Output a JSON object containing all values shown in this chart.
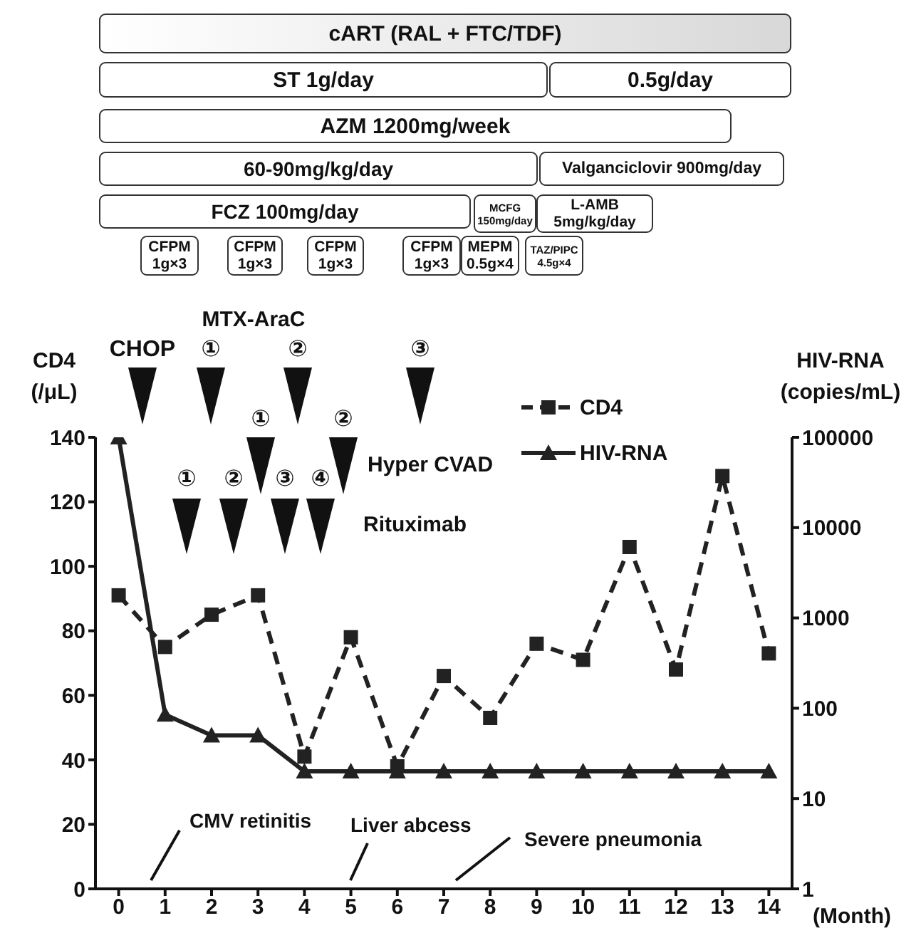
{
  "chart_data": {
    "type": "line",
    "xlabel": "(Month)",
    "ylabel": "CD4\n(/μL)",
    "y2label": "HIV-RNA\n(copies/mL)",
    "x": [
      0,
      1,
      2,
      3,
      4,
      5,
      6,
      7,
      8,
      9,
      10,
      11,
      12,
      13,
      14
    ],
    "xlim": [
      -0.5,
      14.5
    ],
    "xticks": [
      0,
      1,
      2,
      3,
      4,
      5,
      6,
      7,
      8,
      9,
      10,
      11,
      12,
      13,
      14
    ],
    "ylim": [
      0,
      140
    ],
    "yticks": [
      0,
      20,
      40,
      60,
      80,
      100,
      120,
      140
    ],
    "y2lim": [
      1,
      100000
    ],
    "y2ticks": [
      1,
      10,
      100,
      1000,
      10000,
      100000
    ],
    "log": "y2",
    "grid": false,
    "legend": "top right",
    "series": [
      {
        "name": "CD4",
        "color": "#222222",
        "marker": "square",
        "line_style": "dashed",
        "values": [
          91,
          75,
          85,
          91,
          41,
          78,
          38,
          66,
          53,
          76,
          71,
          106,
          68,
          128,
          73
        ]
      },
      {
        "name": "HIV-RNA",
        "color": "#222222",
        "marker": "triangle",
        "line_style": "solid",
        "axis": "y2",
        "values": [
          100000,
          85,
          50,
          50,
          20,
          20,
          20,
          20,
          20,
          20,
          20,
          20,
          20,
          20,
          20
        ]
      }
    ],
    "annotations": [
      "CHOP",
      "①",
      "②",
      "③",
      "①",
      "②",
      "①",
      "②",
      "③",
      "④",
      "MTX-AraC",
      "Hyper CVAD",
      "Rituximab",
      "CMV retinitis",
      "Liver abcess",
      "Severe pneumonia",
      "cART (RAL + FTC/TDF)",
      "ST 1g/day",
      "0.5g/day",
      "AZM 1200mg/week",
      "60-90mg/kg/day",
      "Valganciclovir 900mg/day",
      "FCZ 100mg/day",
      "MCFG\n150mg/day",
      "L-AMB\n5mg/kg/day",
      "CFPM\n1g×3",
      "CFPM\n1g×3",
      "CFPM\n1g×3",
      "CFPM\n1g×3",
      "MEPM\n0.5g×4",
      "TAZ/PIPC\n4.5g×4"
    ]
  }
}
